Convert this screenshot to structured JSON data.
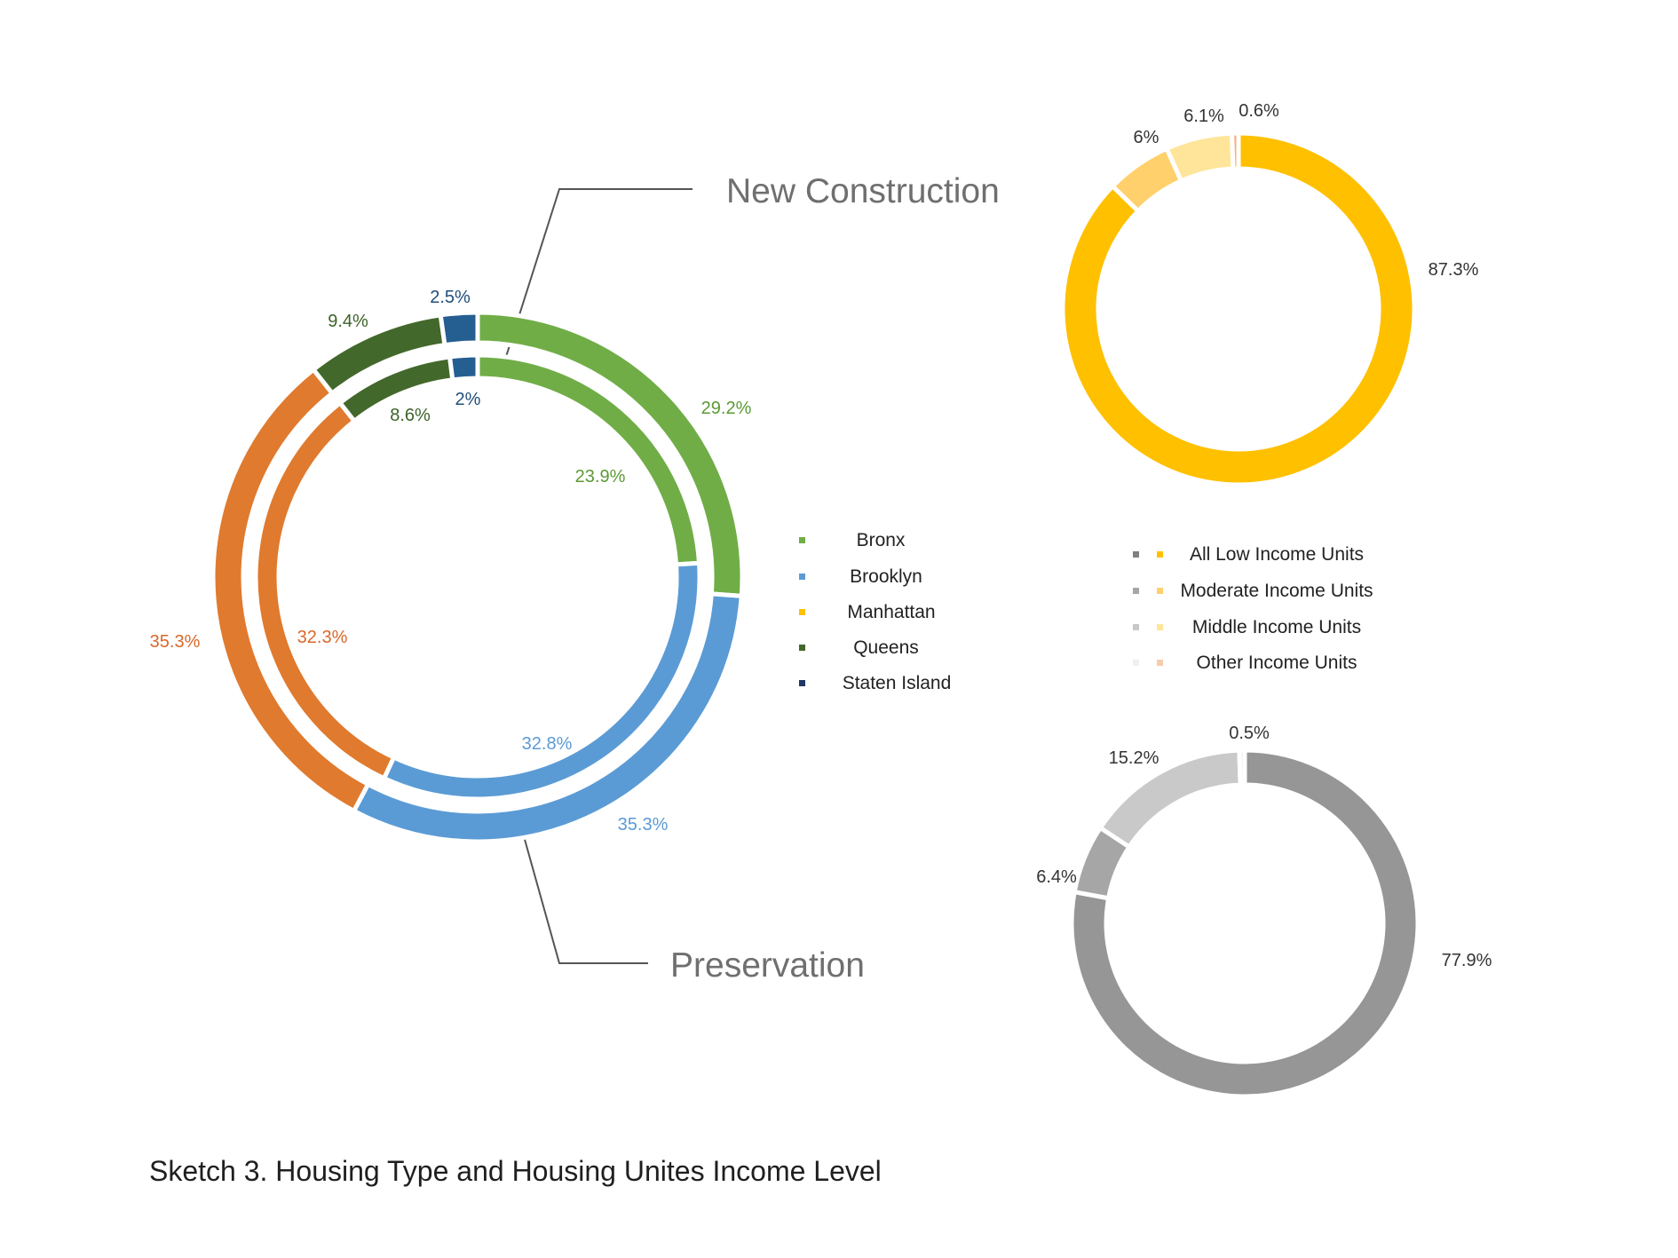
{
  "caption": "Sketch 3. Housing Type and Housing Unites Income Level",
  "callouts": {
    "outer": "New Construction",
    "inner": "Preservation"
  },
  "chart_data": [
    {
      "type": "doughnut",
      "rings": [
        {
          "name": "New Construction",
          "values": [
            29.2,
            35.3,
            35.3,
            9.4,
            2.5
          ],
          "labels": [
            "29.2%",
            "35.3%",
            "35.3%",
            "9.4%",
            "2.5%"
          ]
        },
        {
          "name": "Preservation",
          "values": [
            23.9,
            32.8,
            32.3,
            8.6,
            2
          ],
          "labels": [
            "23.9%",
            "32.8%",
            "32.3%",
            "8.6%",
            "2%"
          ]
        }
      ],
      "categories": [
        "Bronx",
        "Brooklyn",
        "Manhattan",
        "Queens",
        "Staten Island"
      ],
      "colors": [
        "#70ad47",
        "#5b9bd5",
        "#e07a2e",
        "#43682b",
        "#255e91"
      ],
      "label_colors": [
        "#5b9a35",
        "#5b9bd5",
        "#d9682a",
        "#3d6328",
        "#1f4e79"
      ],
      "legend": {
        "placement": "right",
        "entries": [
          "Bronx",
          "Brooklyn",
          "Manhattan",
          "Queens",
          "Staten Island"
        ],
        "colors": [
          "#70ad47",
          "#5b9bd5",
          "#ffc000",
          "#43682b",
          "#1f3864"
        ]
      }
    },
    {
      "type": "doughnut",
      "categories": [
        "All Low Income Units",
        "Moderate Income Units",
        "Middle Income Units",
        "Other Income Units"
      ],
      "values": [
        87.3,
        6,
        6.1,
        0.6
      ],
      "labels": [
        "87.3%",
        "6%",
        "6.1%",
        "0.6%"
      ],
      "colors": [
        "#ffc000",
        "#ffd06b",
        "#ffe599",
        "#f4b183"
      ]
    },
    {
      "type": "doughnut",
      "categories": [
        "All Low Income Units",
        "Moderate Income Units",
        "Middle Income Units",
        "Other Income Units"
      ],
      "values": [
        77.9,
        6.4,
        15.2,
        0.5
      ],
      "labels": [
        "77.9%",
        "6.4%",
        "15.2%",
        "0.5%"
      ],
      "colors": [
        "#969696",
        "#a6a6a6",
        "#c9c9c9",
        "#ededed"
      ]
    },
    {
      "type": "legend",
      "placement": "between-right-charts",
      "entries": [
        "All Low Income Units",
        "Moderate Income Units",
        "Middle Income Units",
        "Other Income Units"
      ],
      "gray_colors": [
        "#808080",
        "#a6a6a6",
        "#c8c8c8",
        "#f0f0f0"
      ],
      "gold_colors": [
        "#ffc000",
        "#ffd06b",
        "#ffe599",
        "#f8cbad"
      ]
    }
  ]
}
